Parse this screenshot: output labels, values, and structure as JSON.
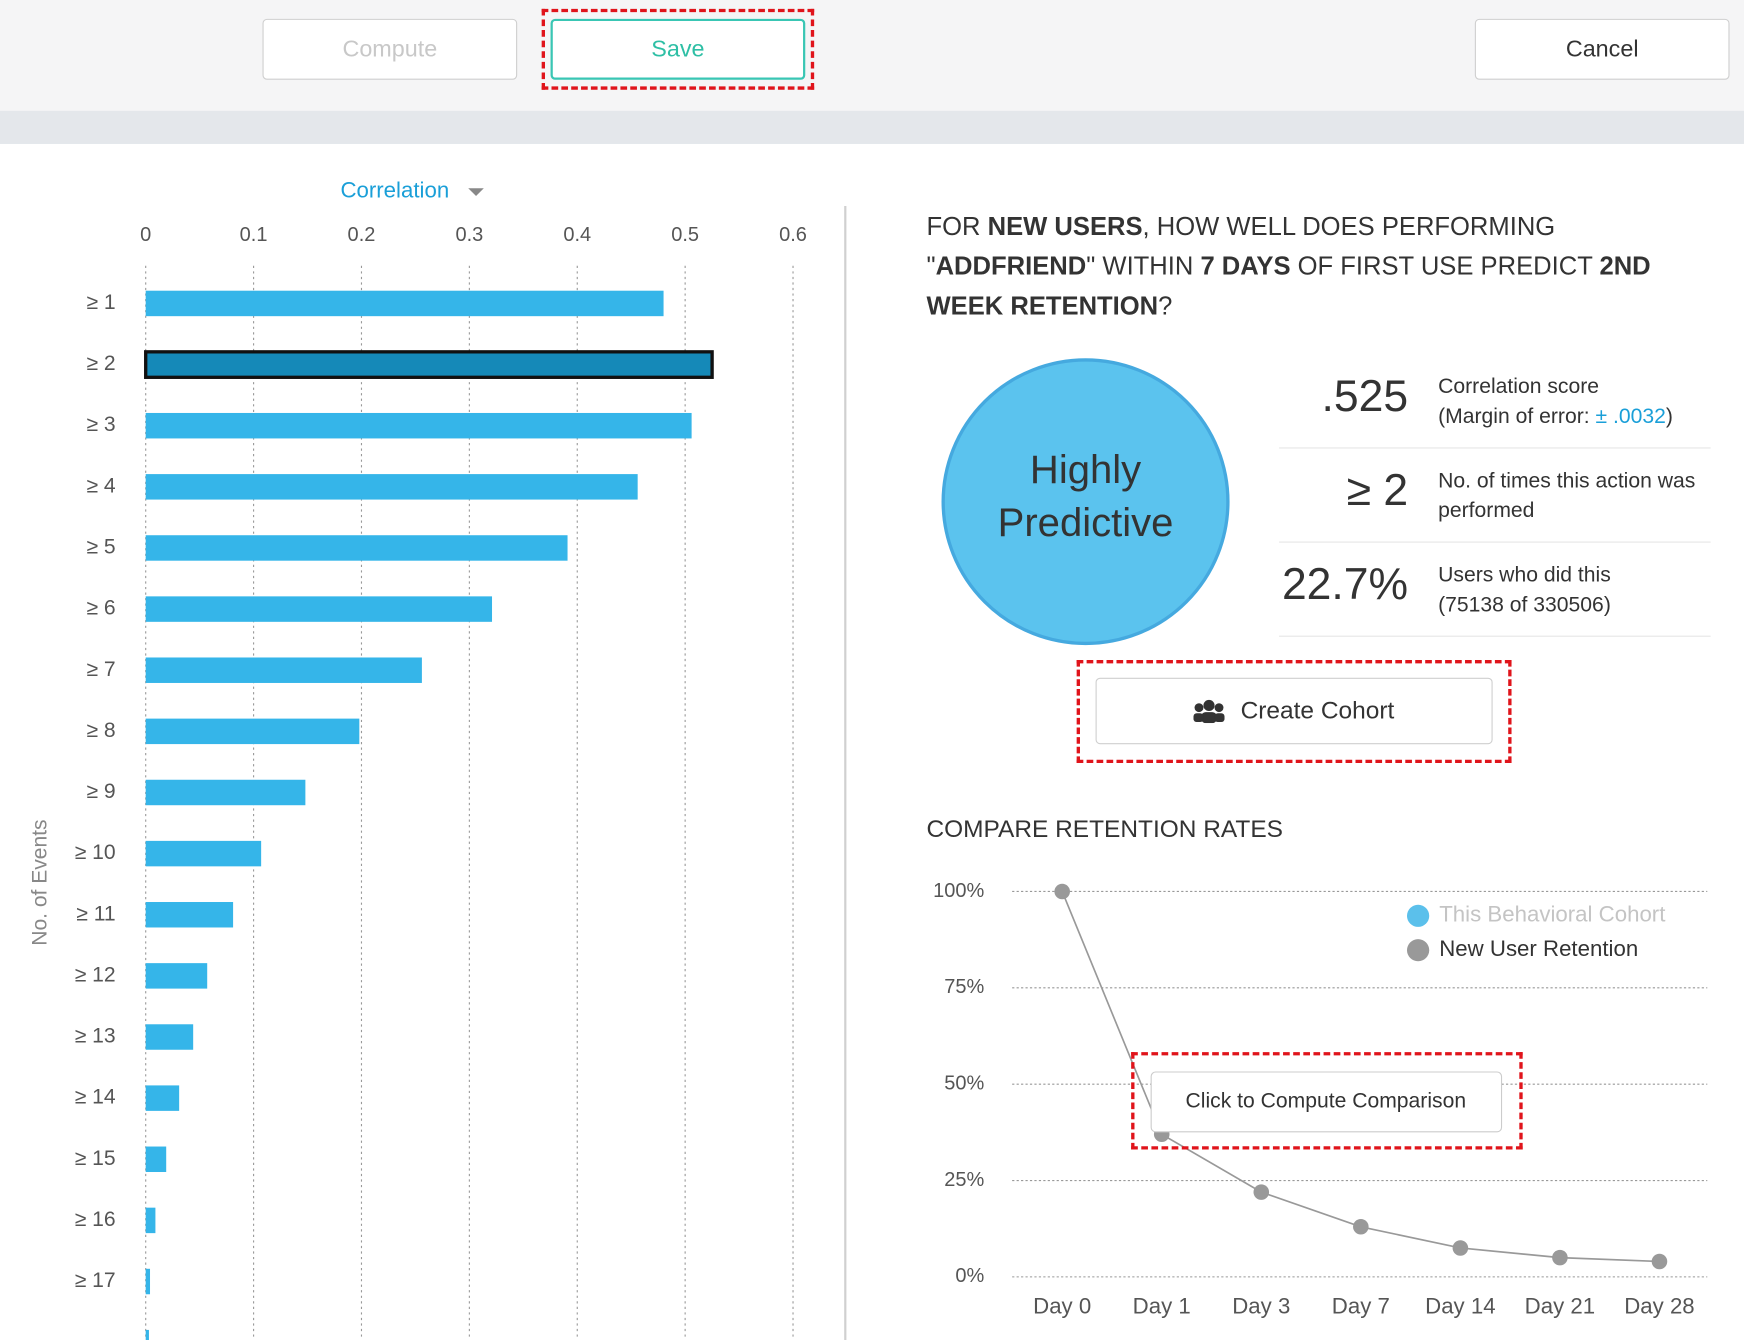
{
  "toolbar": {
    "compute": "Compute",
    "save": "Save",
    "cancel": "Cancel"
  },
  "chart_data": [
    {
      "type": "bar",
      "orientation": "horizontal",
      "metric_label": "Correlation",
      "y_label": "No. of Events",
      "categories": [
        "≥ 1",
        "≥ 2",
        "≥ 3",
        "≥ 4",
        "≥ 5",
        "≥ 6",
        "≥ 7",
        "≥ 8",
        "≥ 9",
        "≥ 10",
        "≥ 11",
        "≥ 12",
        "≥ 13",
        "≥ 14",
        "≥ 15",
        "≥ 16",
        "≥ 17",
        null
      ],
      "values": [
        0.48,
        0.525,
        0.506,
        0.456,
        0.391,
        0.321,
        0.256,
        0.198,
        0.148,
        0.107,
        0.081,
        0.057,
        0.044,
        0.031,
        0.019,
        0.009,
        0.004,
        0.003
      ],
      "color": "#35b5e9",
      "highlight_index": 1,
      "highlight_color": "#1589b8",
      "xlim": [
        0,
        0.6
      ],
      "xticks": [
        0,
        0.1,
        0.2,
        0.3,
        0.4,
        0.5,
        0.6
      ],
      "grid": true
    },
    {
      "type": "line",
      "title": "COMPARE RETENTION RATES",
      "categories": [
        "Day 0",
        "Day 1",
        "Day 3",
        "Day 7",
        "Day 14",
        "Day 21",
        "Day 28"
      ],
      "series": [
        {
          "name": "This Behavioral Cohort",
          "color": "#5bc0eb",
          "values": [
            null,
            null,
            null,
            null,
            null,
            null,
            null
          ]
        },
        {
          "name": "New User Retention",
          "color": "#999999",
          "values": [
            100,
            37,
            22,
            13,
            7.5,
            5,
            4
          ]
        }
      ],
      "ylim": [
        0,
        100
      ],
      "yticks": [
        {
          "value": 0,
          "label": "0%"
        },
        {
          "value": 25,
          "label": "25%"
        },
        {
          "value": 50,
          "label": "50%"
        },
        {
          "value": 75,
          "label": "75%"
        },
        {
          "value": 100,
          "label": "100%"
        }
      ],
      "grid": true,
      "tooltip": "Click to Compute Comparison"
    }
  ],
  "question": {
    "segments": [
      {
        "text": "FOR ",
        "bold": false
      },
      {
        "text": "NEW USERS",
        "bold": true
      },
      {
        "text": ", HOW WELL DOES PERFORMING \"",
        "bold": false
      },
      {
        "text": "ADDFRIEND",
        "bold": true
      },
      {
        "text": "\" WITHIN ",
        "bold": false
      },
      {
        "text": "7 DAYS",
        "bold": true
      },
      {
        "text": " OF FIRST USE PREDICT ",
        "bold": false
      },
      {
        "text": "2ND WEEK RETENTION",
        "bold": true
      },
      {
        "text": "?",
        "bold": false
      }
    ]
  },
  "verdict": "Highly Predictive",
  "stats": [
    {
      "value": ".525",
      "label": "Correlation score",
      "note_prefix": "(Margin of error: ",
      "note_link": "± .0032",
      "note_suffix": ")"
    },
    {
      "value": "≥ 2",
      "label": "No. of times this action was performed"
    },
    {
      "value": "22.7%",
      "label": "Users who did this",
      "note_prefix": "(75138 of 330506)"
    }
  ],
  "create_cohort": "Create Cohort"
}
